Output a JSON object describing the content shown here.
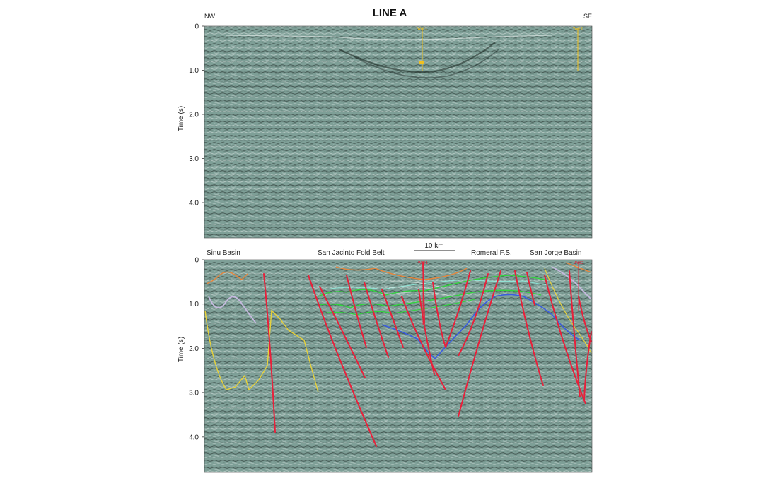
{
  "title": "LINE A",
  "direction_left": "NW",
  "direction_right": "SE",
  "y_axis_label": "Time (s)",
  "y_ticks": [
    "0",
    "1.0",
    "2.0",
    "3.0",
    "4.0"
  ],
  "y_tick_values": [
    0,
    1,
    2,
    3,
    4
  ],
  "y_range": [
    0,
    4.8
  ],
  "scale_bar": "10 km",
  "regions": {
    "sinu": "Sinu Basin",
    "san_jacinto": "San Jacinto Fold Belt",
    "romeral": "Romeral F.S.",
    "san_jorge": "San Jorge Basin"
  },
  "colors": {
    "seismic_bg": "#7e9f97",
    "fault": "#e8203a",
    "horizon_yellow": "#e8d23a",
    "horizon_green": "#2fd63b",
    "horizon_orange": "#e8853a",
    "horizon_blue": "#3a5ce0",
    "horizon_lavender": "#c7b9e0",
    "horizon_cyan": "#8fe6d8",
    "well": "#f0c020"
  },
  "wells": {
    "top_left": "Well 1",
    "top_right": "Well 2",
    "bottom_left": "Well 1",
    "bottom_right": "Well 2"
  }
}
